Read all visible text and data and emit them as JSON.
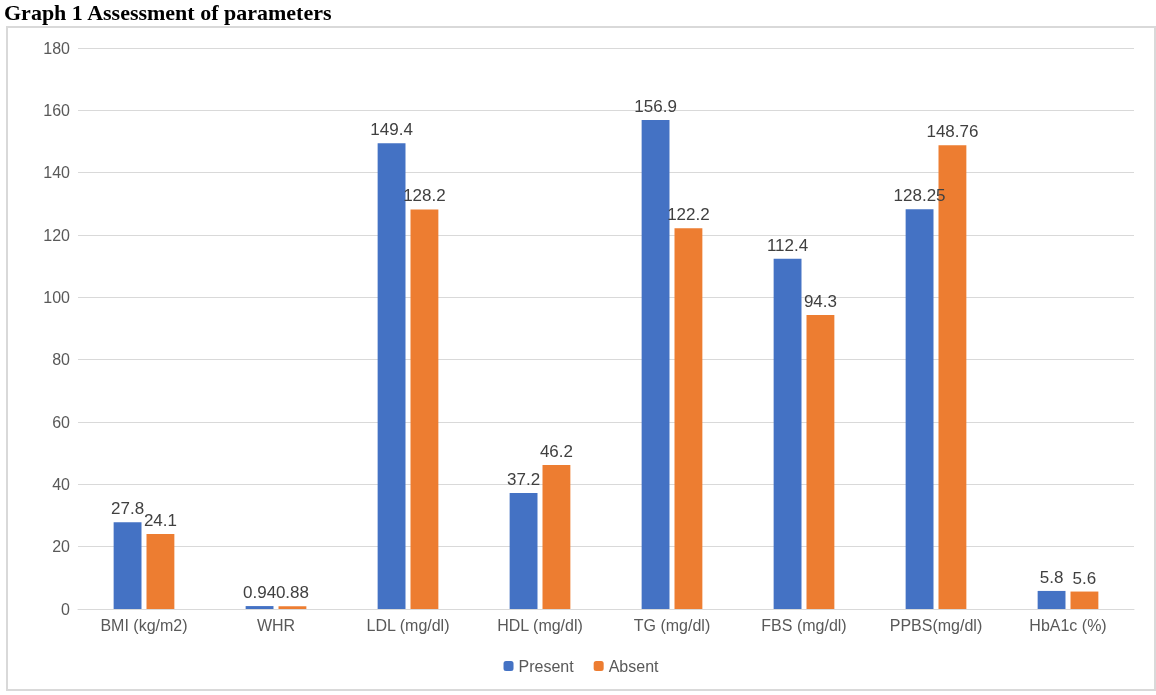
{
  "chart_data": {
    "type": "bar",
    "title": "Graph 1 Assessment of parameters",
    "categories": [
      "BMI (kg/m2)",
      "WHR",
      "LDL (mg/dl)",
      "HDL (mg/dl)",
      "TG (mg/dl)",
      "FBS (mg/dl)",
      "PPBS(mg/dl)",
      "HbA1c (%)"
    ],
    "series": [
      {
        "name": "Present",
        "color": "#4472c4",
        "values": [
          27.8,
          0.94,
          149.4,
          37.2,
          156.9,
          112.4,
          128.25,
          5.8
        ]
      },
      {
        "name": "Absent",
        "color": "#ed7d31",
        "values": [
          24.1,
          0.88,
          128.2,
          46.2,
          122.2,
          94.3,
          148.76,
          5.6
        ]
      }
    ],
    "ylim": [
      0,
      180
    ],
    "yticks": [
      0,
      20,
      40,
      60,
      80,
      100,
      120,
      140,
      160,
      180
    ],
    "grid": "y",
    "legend": "bottom",
    "data_labels": true
  }
}
